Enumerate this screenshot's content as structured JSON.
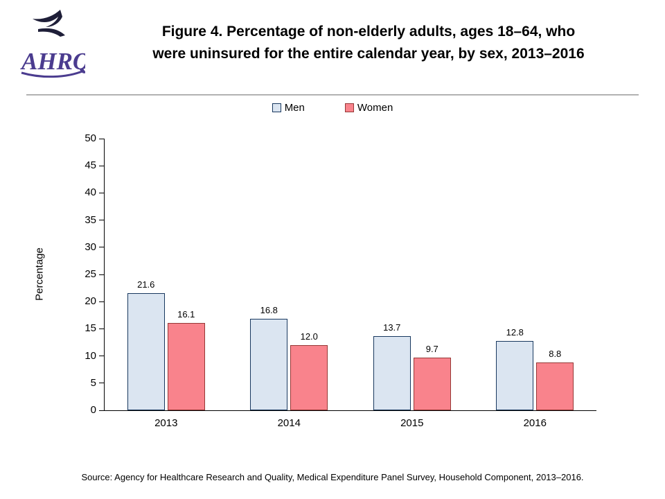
{
  "header": {
    "logo_text": "AHRQ",
    "title_line1": "Figure 4. Percentage of non-elderly adults, ages 18–64, who",
    "title_line2": "were uninsured for the entire calendar year, by sex, 2013–2016"
  },
  "chart_data": {
    "type": "bar",
    "categories": [
      "2013",
      "2014",
      "2015",
      "2016"
    ],
    "series": [
      {
        "name": "Men",
        "color": "#dbe5f1",
        "border": "#17375e",
        "values": [
          21.6,
          16.8,
          13.7,
          12.8
        ]
      },
      {
        "name": "Women",
        "color": "#f9838c",
        "border": "#953735",
        "values": [
          16.1,
          12.0,
          9.7,
          8.8
        ]
      }
    ],
    "title": "Figure 4. Percentage of non-elderly adults, ages 18–64, who were uninsured for the entire calendar year, by sex, 2013–2016",
    "xlabel": "",
    "ylabel": "Percentage",
    "ylim": [
      0,
      50
    ],
    "ytick_step": 5,
    "grid": false,
    "legend_position": "top",
    "value_label_decimals": 1
  },
  "footer": {
    "source": "Source: Agency for Healthcare Research and Quality, Medical Expenditure Panel Survey, Household Component, 2013–2016."
  }
}
